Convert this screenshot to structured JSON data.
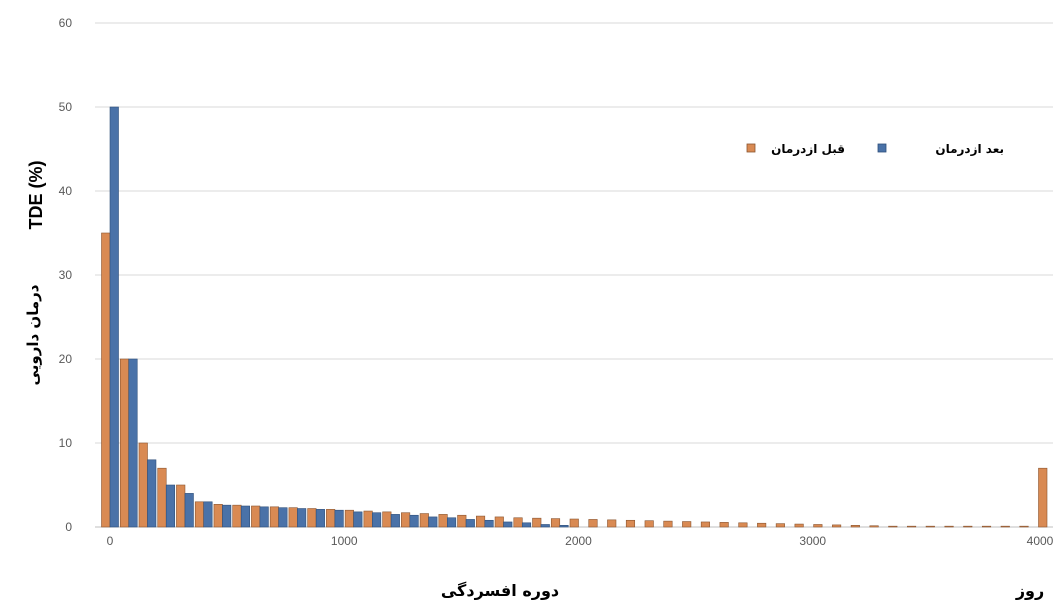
{
  "chart_data": {
    "type": "bar",
    "ylabel_fa": "درمان دارویی",
    "ylabel_en": "TDE (%)",
    "xlabel": "دوره افسردگی",
    "xunit": "روز",
    "ylim": [
      0,
      60
    ],
    "xlim": [
      0,
      4000
    ],
    "y_ticks": [
      "0",
      "10",
      "20",
      "30",
      "40",
      "50",
      "60"
    ],
    "x_ticks": [
      "0",
      "1000",
      "2000",
      "3000",
      "4000"
    ],
    "grid": true,
    "legend_position": "top-right",
    "colors": {
      "before": "#D98A53",
      "after": "#4A72A8"
    },
    "series": [
      {
        "name": "قبل ازدرمان",
        "x": [
          0,
          80,
          160,
          240,
          320,
          400,
          480,
          560,
          640,
          720,
          800,
          880,
          960,
          1040,
          1120,
          1200,
          1280,
          1360,
          1440,
          1520,
          1600,
          1680,
          1760,
          1840,
          1920,
          2000,
          2080,
          2160,
          2240,
          2320,
          2400,
          2480,
          2560,
          2640,
          2720,
          2800,
          2880,
          2960,
          3040,
          3120,
          3200,
          3280,
          3360,
          3440,
          3520,
          3600,
          3680,
          3760,
          3840,
          3920,
          4000
        ],
        "values": [
          35,
          20,
          10,
          7,
          5,
          3,
          2.7,
          2.6,
          2.5,
          2.4,
          2.3,
          2.2,
          2.1,
          2,
          1.9,
          1.8,
          1.7,
          1.6,
          1.5,
          1.4,
          1.3,
          1.2,
          1.1,
          1.05,
          1,
          0.95,
          0.9,
          0.85,
          0.8,
          0.75,
          0.7,
          0.65,
          0.6,
          0.55,
          0.5,
          0.45,
          0.4,
          0.35,
          0.3,
          0.25,
          0.2,
          0.15,
          0.1,
          0.1,
          0.1,
          0.1,
          0.1,
          0.1,
          0.1,
          0.1,
          7
        ]
      },
      {
        "name": "بعد ازدرمان",
        "x": [
          0,
          80,
          160,
          240,
          320,
          400,
          480,
          560,
          640,
          720,
          800,
          880,
          960,
          1040,
          1120,
          1200,
          1280,
          1360,
          1440,
          1520,
          1600,
          1680,
          1760,
          1840,
          1920
        ],
        "values": [
          50,
          20,
          8,
          5,
          4,
          3,
          2.6,
          2.5,
          2.4,
          2.3,
          2.2,
          2.1,
          2,
          1.8,
          1.7,
          1.5,
          1.4,
          1.2,
          1.1,
          0.9,
          0.8,
          0.6,
          0.5,
          0.3,
          0.2
        ]
      }
    ]
  }
}
